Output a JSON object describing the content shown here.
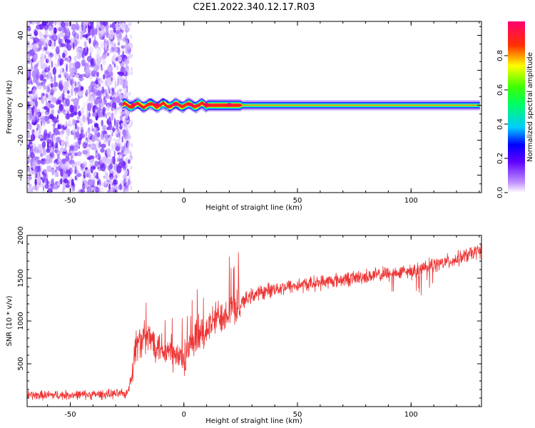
{
  "figure_title": "C2E1.2022.340.12.17.R03",
  "chart_data": [
    {
      "type": "heatmap",
      "name": "spectrogram",
      "xlabel": "Height of straight line (km)",
      "ylabel": "Frequency (Hz)",
      "xlim": [
        -69,
        131
      ],
      "ylim": [
        -50,
        48
      ],
      "xticks": [
        -50,
        0,
        50,
        100
      ],
      "yticks": [
        -40,
        -20,
        0,
        20,
        40
      ],
      "noise_region_x": [
        -69,
        -26
      ],
      "signal_start_x": -27,
      "signal_frequency_hz": 0,
      "colorbar": {
        "label": "Normalized spectral amplitude",
        "range": [
          0,
          1
        ],
        "ticks": [
          0.0,
          0.2,
          0.4,
          0.6,
          0.8
        ],
        "tick_labels": [
          "0.0",
          "0.2",
          "0.4",
          "0.6",
          "0.8"
        ],
        "colormap": [
          "#ffffff",
          "#8000ff",
          "#0000ff",
          "#00ffff",
          "#00ff00",
          "#ffff00",
          "#ff0000",
          "#ff0080"
        ]
      }
    },
    {
      "type": "line",
      "name": "snr",
      "xlabel": "Height of straight line (km)",
      "ylabel": "SNR (10 * v/v)",
      "xlim": [
        -69,
        131
      ],
      "ylim": [
        0,
        2000
      ],
      "xticks": [
        -50,
        0,
        50,
        100
      ],
      "yticks": [
        500,
        1000,
        1500,
        2000
      ],
      "color": "#ee3333",
      "trend": {
        "x": [
          -69,
          -40,
          -25,
          -23,
          -21,
          -15,
          -5,
          0,
          5,
          15,
          25,
          30,
          40,
          60,
          80,
          100,
          120,
          131
        ],
        "y": [
          130,
          140,
          150,
          350,
          750,
          800,
          600,
          550,
          750,
          1050,
          1200,
          1300,
          1380,
          1450,
          1520,
          1580,
          1720,
          1830
        ]
      }
    }
  ]
}
